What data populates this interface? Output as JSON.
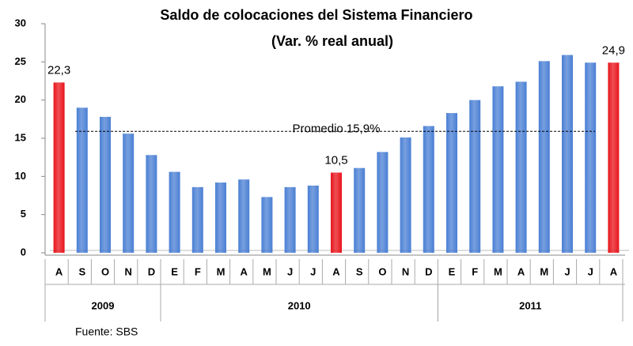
{
  "chart_data": {
    "type": "bar",
    "title": "Saldo de colocaciones del Sistema Financiero",
    "subtitle": "(Var. % real anual)",
    "categories": [
      "A",
      "S",
      "O",
      "N",
      "D",
      "E",
      "F",
      "M",
      "A",
      "M",
      "J",
      "J",
      "A",
      "S",
      "O",
      "N",
      "D",
      "E",
      "F",
      "M",
      "A",
      "M",
      "J",
      "J",
      "A"
    ],
    "values": [
      22.3,
      19.0,
      17.8,
      15.6,
      12.8,
      10.6,
      8.6,
      9.2,
      9.6,
      7.3,
      8.6,
      8.8,
      10.5,
      11.1,
      13.2,
      15.1,
      16.6,
      18.3,
      20.0,
      21.8,
      22.4,
      25.1,
      25.9,
      24.9,
      24.9
    ],
    "value_labels": [
      "22,3",
      null,
      null,
      null,
      null,
      null,
      null,
      null,
      null,
      null,
      null,
      null,
      "10,5",
      null,
      null,
      null,
      null,
      null,
      null,
      null,
      null,
      null,
      null,
      null,
      "24,9"
    ],
    "colors": [
      "#e8141b",
      "#4a7fd4",
      "#4a7fd4",
      "#4a7fd4",
      "#4a7fd4",
      "#4a7fd4",
      "#4a7fd4",
      "#4a7fd4",
      "#4a7fd4",
      "#4a7fd4",
      "#4a7fd4",
      "#4a7fd4",
      "#e8141b",
      "#4a7fd4",
      "#4a7fd4",
      "#4a7fd4",
      "#4a7fd4",
      "#4a7fd4",
      "#4a7fd4",
      "#4a7fd4",
      "#4a7fd4",
      "#4a7fd4",
      "#4a7fd4",
      "#4a7fd4",
      "#e8141b"
    ],
    "groups": [
      {
        "label": "2009",
        "start": 0,
        "end": 4
      },
      {
        "label": "2010",
        "start": 5,
        "end": 16
      },
      {
        "label": "2011",
        "start": 17,
        "end": 24
      }
    ],
    "average": {
      "value": 15.9,
      "label": "Promedio 15,9%"
    },
    "ylim": [
      0,
      30
    ],
    "yticks": [
      0,
      5,
      10,
      15,
      20,
      25,
      30
    ],
    "source": "Fuente: SBS"
  }
}
